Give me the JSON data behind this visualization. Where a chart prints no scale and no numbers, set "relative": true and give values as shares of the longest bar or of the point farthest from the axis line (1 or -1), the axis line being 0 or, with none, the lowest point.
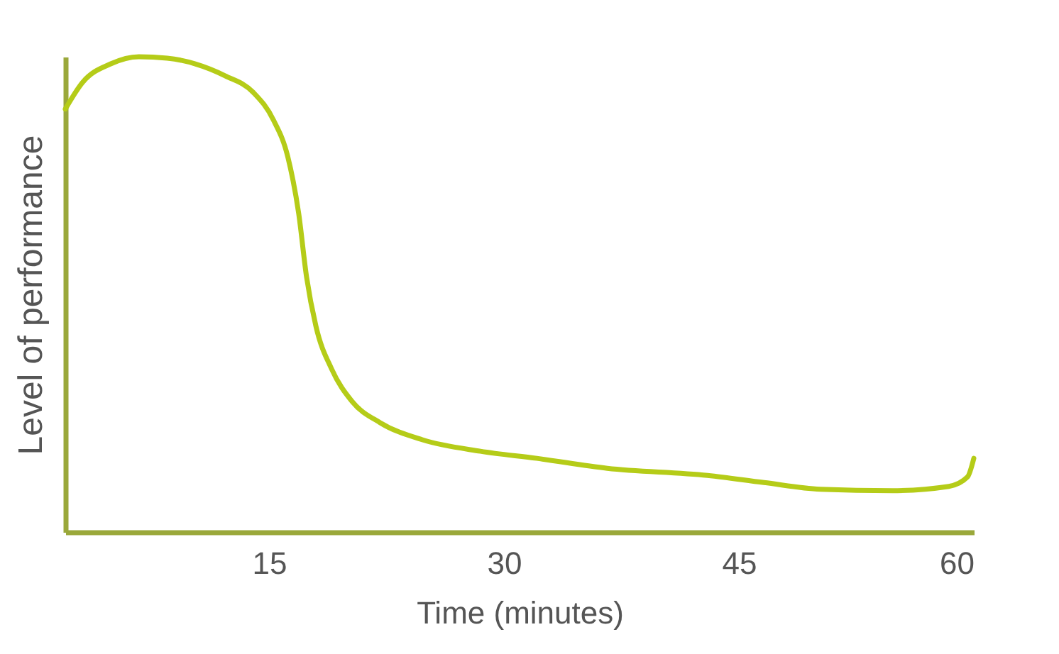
{
  "chart_data": {
    "type": "line",
    "xlabel": "Time (minutes)",
    "ylabel": "Level of performance",
    "relative": true,
    "tick_labels": "x",
    "xlim": [
      2,
      60
    ],
    "xticks": [
      15,
      30,
      45,
      60
    ],
    "grid": false,
    "marker": "none",
    "line_style": "solid",
    "series": [
      {
        "color": "#b5cc18",
        "x": [
          2,
          3.1,
          4.9,
          6.7,
          8.5,
          10.3,
          12.2,
          14,
          15.3,
          16.2,
          16.9,
          17.4,
          18,
          19,
          20.3,
          22.1,
          24.8,
          28.5,
          32.1,
          36.6,
          43,
          46.6,
          50.2,
          54.8,
          58.4,
          59.6,
          60
        ],
        "values": [
          0.89,
          0.946,
          0.985,
          1.0,
          0.997,
          0.985,
          0.96,
          0.925,
          0.866,
          0.79,
          0.67,
          0.537,
          0.433,
          0.343,
          0.275,
          0.23,
          0.194,
          0.17,
          0.155,
          0.134,
          0.119,
          0.104,
          0.09,
          0.087,
          0.096,
          0.116,
          0.155
        ]
      }
    ]
  }
}
